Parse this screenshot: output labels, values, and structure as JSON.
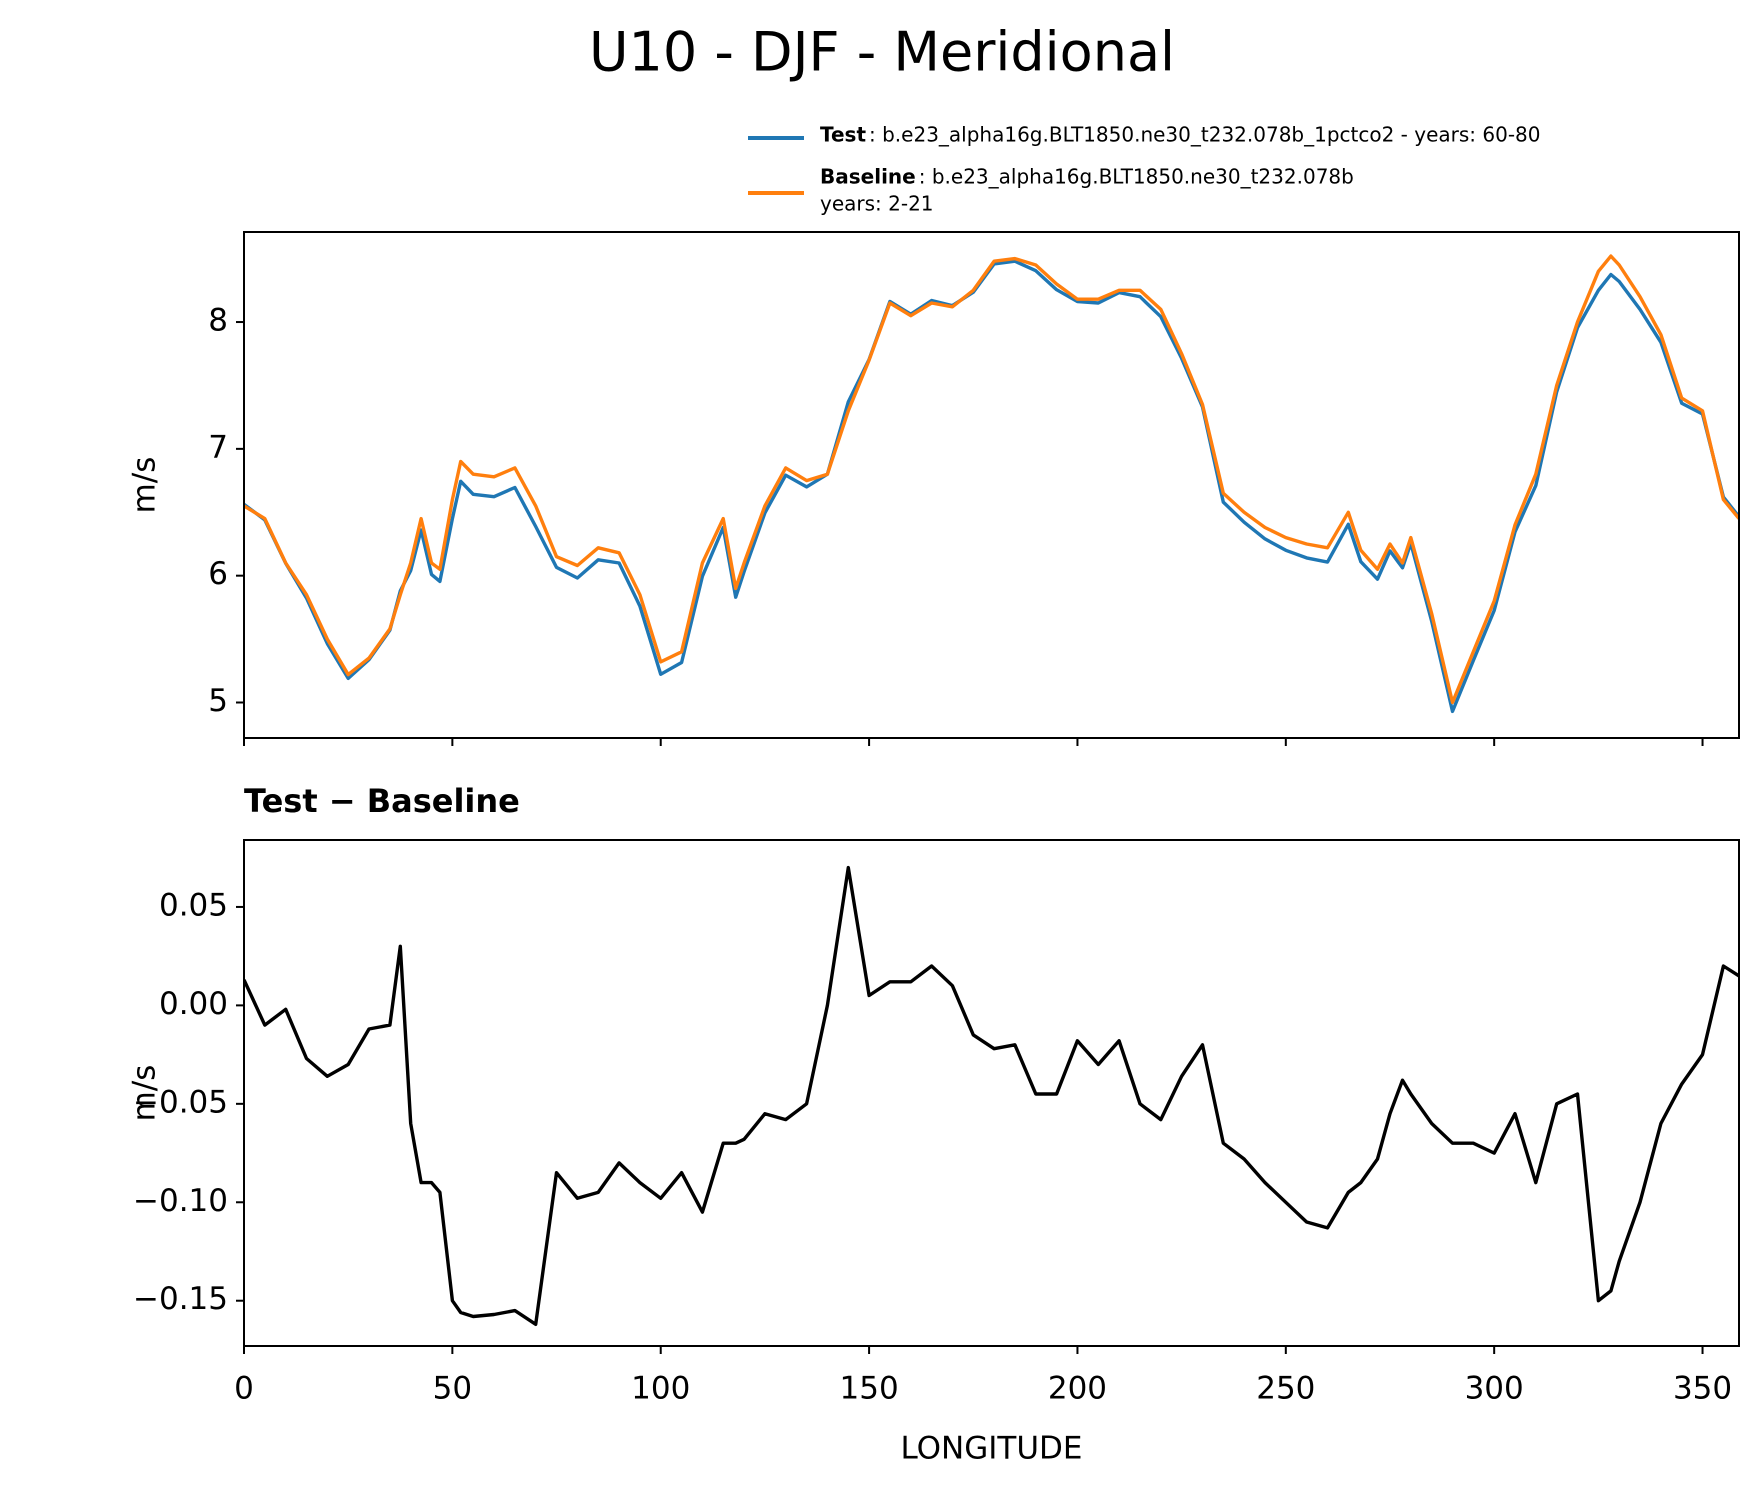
{
  "chart_data": [
    {
      "type": "line",
      "title": "U10 - DJF - Meridional",
      "ylabel": "m/s",
      "x": [
        0,
        5,
        10,
        15,
        20,
        25,
        30,
        35,
        37.5,
        40,
        42.5,
        45,
        47,
        50,
        52,
        55,
        60,
        65,
        70,
        75,
        80,
        85,
        90,
        95,
        100,
        105,
        110,
        115,
        118,
        120,
        125,
        130,
        135,
        140,
        145,
        150,
        155,
        160,
        165,
        170,
        175,
        180,
        185,
        190,
        195,
        200,
        205,
        210,
        215,
        220,
        225,
        230,
        235,
        240,
        245,
        250,
        255,
        260,
        265,
        268,
        272,
        275,
        278,
        280,
        285,
        290,
        295,
        300,
        305,
        310,
        315,
        320,
        325,
        328,
        330,
        335,
        340,
        345,
        350,
        355,
        358.75
      ],
      "series": [
        {
          "name": "Test",
          "label": [
            ": b.e23_alpha16g.BLT1850.ne30_t232.078b_1pctco2 - years: 60-80"
          ],
          "color": "#1f77b4",
          "values": [
            6.563,
            6.44,
            6.098,
            5.823,
            5.464,
            5.19,
            5.338,
            5.57,
            5.88,
            6.04,
            6.36,
            6.01,
            5.955,
            6.45,
            6.744,
            6.642,
            6.623,
            6.695,
            6.388,
            6.065,
            5.982,
            6.125,
            6.1,
            5.76,
            5.222,
            5.315,
            5.995,
            6.38,
            5.83,
            6.032,
            6.495,
            6.792,
            6.7,
            6.8,
            7.37,
            7.705,
            8.162,
            8.062,
            8.17,
            8.13,
            8.235,
            8.458,
            8.48,
            8.405,
            8.255,
            8.162,
            8.15,
            8.232,
            8.2,
            8.042,
            7.714,
            7.33,
            6.58,
            6.422,
            6.29,
            6.2,
            6.14,
            6.107,
            6.405,
            6.11,
            5.972,
            6.195,
            6.062,
            6.255,
            5.64,
            4.93,
            5.33,
            5.725,
            6.345,
            6.71,
            7.45,
            7.955,
            8.25,
            8.375,
            8.32,
            8.1,
            7.84,
            7.36,
            7.275,
            6.62,
            6.465
          ]
        },
        {
          "name": "Baseline",
          "label": [
            ": b.e23_alpha16g.BLT1850.ne30_t232.078b",
            "years: 2-21"
          ],
          "color": "#ff7f0e",
          "values": [
            6.55,
            6.45,
            6.1,
            5.85,
            5.5,
            5.22,
            5.35,
            5.58,
            5.85,
            6.1,
            6.45,
            6.1,
            6.05,
            6.6,
            6.9,
            6.8,
            6.78,
            6.85,
            6.55,
            6.15,
            6.08,
            6.22,
            6.18,
            5.85,
            5.32,
            5.4,
            6.1,
            6.45,
            5.9,
            6.1,
            6.55,
            6.85,
            6.75,
            6.8,
            7.3,
            7.7,
            8.15,
            8.05,
            8.15,
            8.12,
            8.25,
            8.48,
            8.5,
            8.45,
            8.3,
            8.18,
            8.18,
            8.25,
            8.25,
            8.1,
            7.75,
            7.35,
            6.65,
            6.5,
            6.38,
            6.3,
            6.25,
            6.22,
            6.5,
            6.2,
            6.05,
            6.25,
            6.1,
            6.3,
            5.7,
            5.0,
            5.4,
            5.8,
            6.4,
            6.8,
            7.5,
            8.0,
            8.4,
            8.52,
            8.45,
            8.2,
            7.9,
            7.4,
            7.3,
            6.6,
            6.45
          ]
        }
      ],
      "xlim": [
        0,
        358.75
      ],
      "ylim": [
        4.72,
        8.71
      ],
      "yticks": [
        5,
        6,
        7,
        8
      ]
    },
    {
      "type": "line",
      "title": "Test − Baseline",
      "xlabel": "LONGITUDE",
      "ylabel": "m/s",
      "x": [
        0,
        5,
        10,
        15,
        20,
        25,
        30,
        35,
        37.5,
        40,
        42.5,
        45,
        47,
        50,
        52,
        55,
        60,
        65,
        70,
        75,
        80,
        85,
        90,
        95,
        100,
        105,
        110,
        115,
        118,
        120,
        125,
        130,
        135,
        140,
        145,
        150,
        155,
        160,
        165,
        170,
        175,
        180,
        185,
        190,
        195,
        200,
        205,
        210,
        215,
        220,
        225,
        230,
        235,
        240,
        245,
        250,
        255,
        260,
        265,
        268,
        272,
        275,
        278,
        280,
        285,
        290,
        295,
        300,
        305,
        310,
        315,
        320,
        325,
        328,
        330,
        335,
        340,
        345,
        350,
        355,
        358.75
      ],
      "series": [
        {
          "color": "#000000",
          "values": [
            0.013,
            -0.01,
            -0.002,
            -0.027,
            -0.036,
            -0.03,
            -0.012,
            -0.01,
            0.03,
            -0.06,
            -0.09,
            -0.09,
            -0.095,
            -0.15,
            -0.156,
            -0.158,
            -0.157,
            -0.155,
            -0.162,
            -0.085,
            -0.098,
            -0.095,
            -0.08,
            -0.09,
            -0.098,
            -0.085,
            -0.105,
            -0.07,
            -0.07,
            -0.068,
            -0.055,
            -0.058,
            -0.05,
            0.0,
            0.07,
            0.005,
            0.012,
            0.012,
            0.02,
            0.01,
            -0.015,
            -0.022,
            -0.02,
            -0.045,
            -0.045,
            -0.018,
            -0.03,
            -0.018,
            -0.05,
            -0.058,
            -0.036,
            -0.02,
            -0.07,
            -0.078,
            -0.09,
            -0.1,
            -0.11,
            -0.113,
            -0.095,
            -0.09,
            -0.078,
            -0.055,
            -0.038,
            -0.045,
            -0.06,
            -0.07,
            -0.07,
            -0.075,
            -0.055,
            -0.09,
            -0.05,
            -0.045,
            -0.15,
            -0.145,
            -0.13,
            -0.1,
            -0.06,
            -0.04,
            -0.025,
            0.02,
            0.015
          ]
        }
      ],
      "xlim": [
        0,
        358.75
      ],
      "ylim": [
        -0.173,
        0.084
      ],
      "xticks": [
        0,
        50,
        100,
        150,
        200,
        250,
        300,
        350
      ],
      "yticks": [
        0.05,
        {
          "value": 0,
          "label": "0.00"
        },
        {
          "value": -0.05,
          "label": "−0.05"
        },
        {
          "value": -0.1,
          "label": "−0.10"
        },
        {
          "value": -0.15,
          "label": "−0.15"
        }
      ]
    }
  ]
}
